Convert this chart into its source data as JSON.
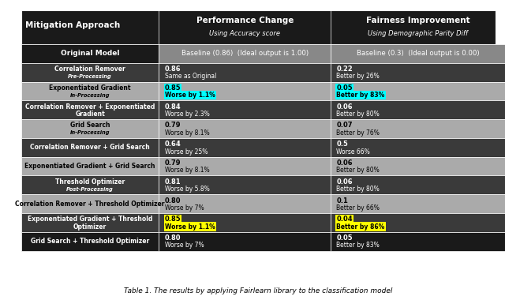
{
  "title_caption": "Table 1. The results by applying Fairlearn library to the classification model",
  "col_headers": [
    "Mitigation Approach",
    "Performance Change",
    "Fairness Improvement"
  ],
  "col_subheaders": [
    "",
    "Using Accuracy score",
    "Using Demographic Parity Diff"
  ],
  "baseline_row": [
    "Original Model",
    "Baseline (0.86) (Ideal output is 1.00)",
    "Baseline (0.3) (Ideal output is 0.00)"
  ],
  "rows": [
    {
      "approach": "Correlation Remover\nPre-Processing",
      "has_italic": true,
      "perf_val": "0.86",
      "perf_note": "Same as Original",
      "fair_val": "0.22",
      "fair_note": "Better by 26%",
      "perf_highlight": null,
      "fair_highlight": null,
      "row_bg": "dark"
    },
    {
      "approach": "Exponentiated Gradient\nIn-Processing",
      "has_italic": true,
      "perf_val": "0.85",
      "perf_note": "Worse by 1.1%",
      "fair_val": "0.05",
      "fair_note": "Better by 83%",
      "perf_highlight": "cyan",
      "fair_highlight": "cyan",
      "row_bg": "light"
    },
    {
      "approach": "Correlation Remover + Exponentiated\nGradient",
      "has_italic": false,
      "perf_val": "0.84",
      "perf_note": "Worse by 2.3%",
      "fair_val": "0.06",
      "fair_note": "Better by 80%",
      "perf_highlight": null,
      "fair_highlight": null,
      "row_bg": "dark"
    },
    {
      "approach": "Grid Search\nIn-Processing",
      "has_italic": true,
      "perf_val": "0.79",
      "perf_note": "Worse by 8.1%",
      "fair_val": "0.07",
      "fair_note": "Better by 76%",
      "perf_highlight": null,
      "fair_highlight": null,
      "row_bg": "light"
    },
    {
      "approach": "Correlation Remover + Grid Search",
      "has_italic": false,
      "perf_val": "0.64",
      "perf_note": "Worse by 25%",
      "fair_val": "0.5",
      "fair_note": "Worse 66%",
      "perf_highlight": null,
      "fair_highlight": null,
      "row_bg": "dark"
    },
    {
      "approach": "Exponentiated Gradient + Grid Search",
      "has_italic": false,
      "perf_val": "0.79",
      "perf_note": "Worse by 8.1%",
      "fair_val": "0.06",
      "fair_note": "Better by 80%",
      "perf_highlight": null,
      "fair_highlight": null,
      "row_bg": "light"
    },
    {
      "approach": "Threshold Optimizer\nPost-Processing",
      "has_italic": true,
      "perf_val": "0.81",
      "perf_note": "Worse by 5.8%",
      "fair_val": "0.06",
      "fair_note": "Better by 80%",
      "perf_highlight": null,
      "fair_highlight": null,
      "row_bg": "dark"
    },
    {
      "approach": "Correlation Remover + Threshold Optimizer",
      "has_italic": false,
      "perf_val": "0.80",
      "perf_note": "Worse by 7%",
      "fair_val": "0.1",
      "fair_note": "Better by 66%",
      "perf_highlight": null,
      "fair_highlight": null,
      "row_bg": "light"
    },
    {
      "approach": "Exponentiated Gradient + Threshold\nOptimizer",
      "has_italic": false,
      "perf_val": "0.85",
      "perf_note": "Worse by 1.1%",
      "fair_val": "0.04",
      "fair_note": "Better by 86%",
      "perf_highlight": "yellow",
      "fair_highlight": "yellow",
      "row_bg": "dark"
    },
    {
      "approach": "Grid Search + Threshold Optimizer",
      "has_italic": false,
      "perf_val": "0.80",
      "perf_note": "Worse by 7%",
      "fair_val": "0.05",
      "fair_note": "Better by 83%",
      "perf_highlight": null,
      "fair_highlight": null,
      "row_bg": "black"
    }
  ],
  "colors": {
    "header_bg": "#1a1a1a",
    "header_text": "#ffffff",
    "dark_row_bg": "#3a3a3a",
    "light_row_bg": "#aaaaaa",
    "black_row_bg": "#1a1a1a",
    "baseline_row_bg": "#888888",
    "dark_row_text": "#ffffff",
    "light_row_text": "#000000",
    "black_row_text": "#ffffff",
    "baseline_text": "#ffffff",
    "cyan": "#00ffff",
    "yellow": "#ffff00",
    "fig_bg": "#ffffff"
  }
}
